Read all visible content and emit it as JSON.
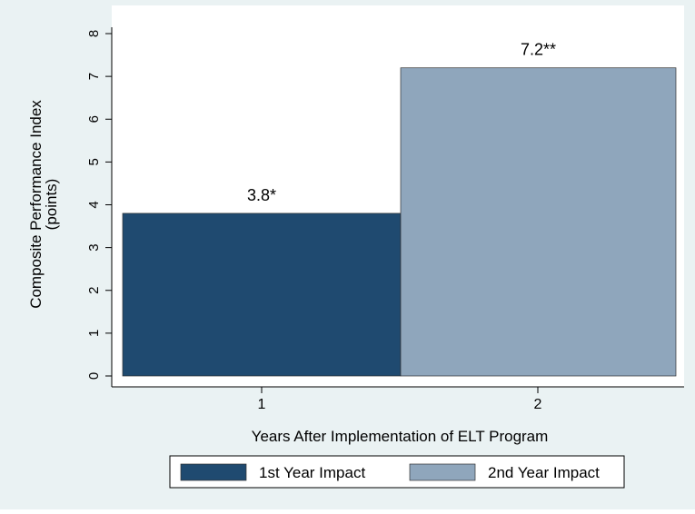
{
  "chart_data": {
    "type": "bar",
    "categories": [
      "1",
      "2"
    ],
    "series": [
      {
        "name": "1st Year Impact",
        "values": [
          3.8,
          null
        ],
        "color": "#1f4a70"
      },
      {
        "name": "2nd Year Impact",
        "values": [
          null,
          7.2
        ],
        "color": "#8fa6bc"
      }
    ],
    "data_labels": [
      "3.8*",
      "7.2**"
    ],
    "xlabel": "Years After Implementation of ELT Program",
    "ylabel_line1": "Composite Performance Index",
    "ylabel_line2": "(points)",
    "ylim": [
      0,
      8
    ],
    "yticks": [
      "0",
      "1",
      "2",
      "3",
      "4",
      "5",
      "6",
      "7",
      "8"
    ],
    "grid": false,
    "legend_position": "bottom"
  },
  "colors": {
    "background": "#eaf2f3",
    "plot_background": "#ffffff",
    "axis": "#000000"
  }
}
